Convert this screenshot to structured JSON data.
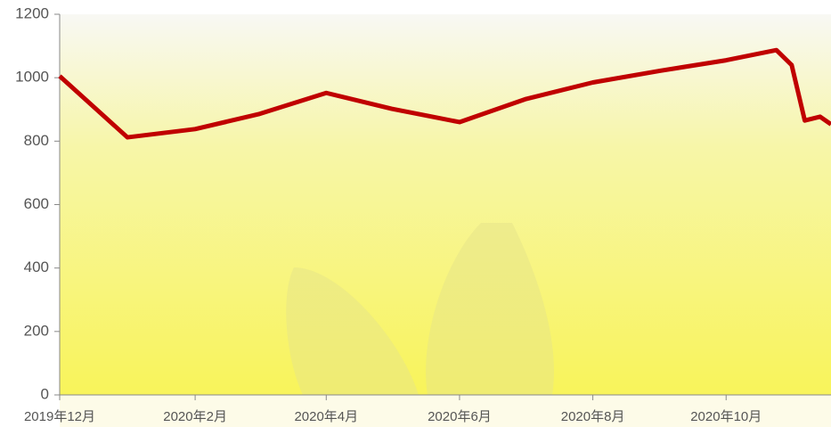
{
  "chart_data": {
    "type": "line",
    "x": [
      "2019-12-01",
      "2020-01-01",
      "2020-02-01",
      "2020-03-01",
      "2020-04-01",
      "2020-05-01",
      "2020-06-01",
      "2020-07-01",
      "2020-08-01",
      "2020-09-01",
      "2020-10-01",
      "2020-10-24",
      "2020-10-31",
      "2020-11-06",
      "2020-11-13",
      "2020-11-18"
    ],
    "series": [
      {
        "color": "#c00000",
        "values": [
          1005,
          812,
          838,
          885,
          952,
          902,
          860,
          932,
          985,
          1022,
          1055,
          1087,
          1040,
          865,
          877,
          853
        ]
      }
    ],
    "xlim": [
      "2019-12-01",
      "2020-11-18"
    ],
    "xticks": [
      {
        "value": "2019-12-01",
        "label": "2019年12月"
      },
      {
        "value": "2020-02-01",
        "label": "2020年2月"
      },
      {
        "value": "2020-04-01",
        "label": "2020年4月"
      },
      {
        "value": "2020-06-01",
        "label": "2020年6月"
      },
      {
        "value": "2020-08-01",
        "label": "2020年8月"
      },
      {
        "value": "2020-10-01",
        "label": "2020年10月"
      }
    ],
    "ylim": [
      0,
      1200
    ],
    "yticks": [
      0,
      200,
      400,
      600,
      800,
      1000,
      1200
    ],
    "grid": false
  }
}
